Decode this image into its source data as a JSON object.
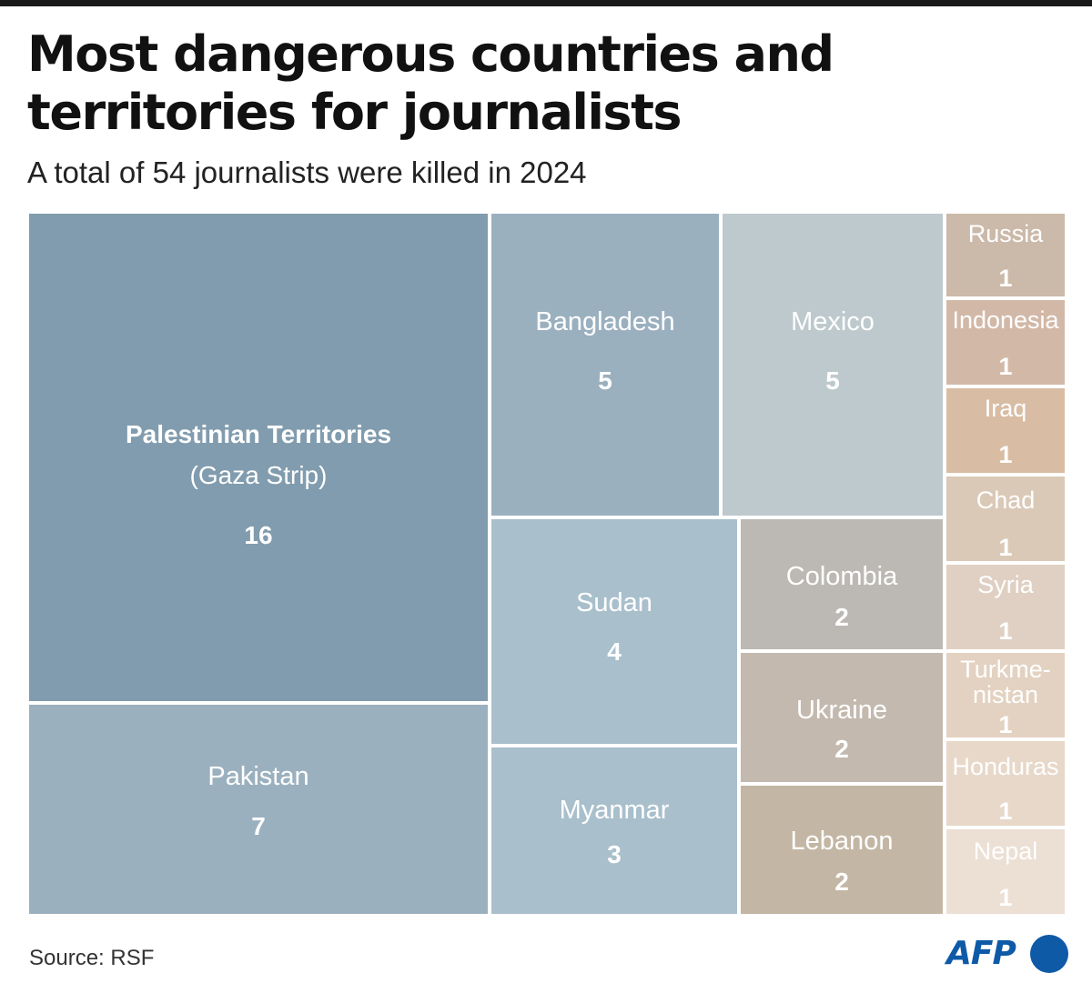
{
  "header": {
    "title": "Most dangerous countries and territories for journalists",
    "subtitle": "A total of 54 journalists were killed in 2024"
  },
  "footer": {
    "source": "Source: RSF",
    "logo_text": "AFP"
  },
  "colors": {
    "blue_dark": "#819cae",
    "blue_mid": "#9bb0bf",
    "blue_light": "#a9bfcc",
    "grey_blue": "#bec9cd",
    "grey_warm": "#bcb8b3",
    "taupe": "#c3b9ae",
    "tan": "#c4b6a4",
    "logo": "#0e5aa7"
  },
  "chart_data": {
    "type": "treemap",
    "title": "Most dangerous countries and territories for journalists",
    "subtitle": "A total of 54 journalists were killed in 2024",
    "total": 54,
    "year": 2024,
    "items": [
      {
        "label": "Palestinian Territories",
        "sublabel": "(Gaza Strip)",
        "value": 16,
        "color": "#819cae"
      },
      {
        "label": "Pakistan",
        "value": 7,
        "color": "#9bb0bf"
      },
      {
        "label": "Bangladesh",
        "value": 5,
        "color": "#9bb0bf"
      },
      {
        "label": "Mexico",
        "value": 5,
        "color": "#bec9cd"
      },
      {
        "label": "Sudan",
        "value": 4,
        "color": "#a9bfcc"
      },
      {
        "label": "Myanmar",
        "value": 3,
        "color": "#a9bfcc"
      },
      {
        "label": "Colombia",
        "value": 2,
        "color": "#bcb8b3"
      },
      {
        "label": "Ukraine",
        "value": 2,
        "color": "#c3b9ae"
      },
      {
        "label": "Lebanon",
        "value": 2,
        "color": "#c4b6a4"
      },
      {
        "label": "Russia",
        "value": 1,
        "color": "#cbb9a9"
      },
      {
        "label": "Indonesia",
        "value": 1,
        "color": "#d2b8a7"
      },
      {
        "label": "Iraq",
        "value": 1,
        "color": "#d8bca4"
      },
      {
        "label": "Chad",
        "value": 1,
        "color": "#dac9b7"
      },
      {
        "label": "Syria",
        "value": 1,
        "color": "#dfd0c3"
      },
      {
        "label": "Turkme-\nnistan",
        "value": 1,
        "color": "#e3d2c1"
      },
      {
        "label": "Honduras",
        "value": 1,
        "color": "#e7d8c9"
      },
      {
        "label": "Nepal",
        "value": 1,
        "color": "#ecdfd4"
      }
    ]
  }
}
